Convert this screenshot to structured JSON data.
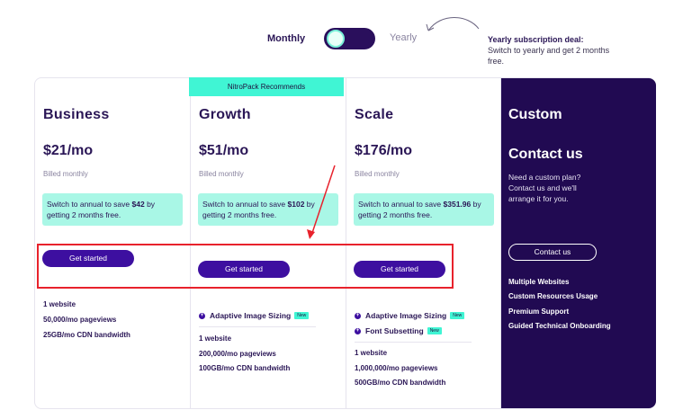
{
  "toggle": {
    "monthly_label": "Monthly",
    "yearly_label": "Yearly",
    "state": "monthly"
  },
  "deal": {
    "title": "Yearly subscription deal:",
    "text": "Switch to yearly and get 2 months free."
  },
  "recommend_label": "NitroPack Recommends",
  "plans": [
    {
      "name": "Business",
      "price": "$21/mo",
      "billed": "Billed monthly",
      "save_prefix": "Switch to annual to save ",
      "save_amount": "$42",
      "save_suffix": " by getting 2 months free.",
      "button": "Get started",
      "features": [
        "1 website",
        "50,000/mo pageviews",
        "25GB/mo CDN bandwidth"
      ]
    },
    {
      "name": "Growth",
      "price": "$51/mo",
      "billed": "Billed monthly",
      "save_prefix": "Switch to annual to save ",
      "save_amount": "$102",
      "save_suffix": " by getting 2 months free.",
      "button": "Get started",
      "extras": [
        {
          "label": "Adaptive Image Sizing",
          "badge": "New"
        }
      ],
      "features": [
        "1 website",
        "200,000/mo pageviews",
        "100GB/mo CDN bandwidth"
      ]
    },
    {
      "name": "Scale",
      "price": "$176/mo",
      "billed": "Billed monthly",
      "save_prefix": "Switch to annual to save ",
      "save_amount": "$351.96",
      "save_suffix": " by getting 2 months free.",
      "button": "Get started",
      "extras": [
        {
          "label": "Adaptive Image Sizing",
          "badge": "New"
        },
        {
          "label": "Font Subsetting",
          "badge": "New"
        }
      ],
      "features": [
        "1 website",
        "1,000,000/mo pageviews",
        "500GB/mo CDN bandwidth"
      ]
    }
  ],
  "custom": {
    "name": "Custom",
    "contact_title": "Contact us",
    "text": "Need a custom plan? Contact us and we'll arrange it for you.",
    "button": "Contact us",
    "features": [
      "Multiple Websites",
      "Custom Resources Usage",
      "Premium Support",
      "Guided Technical Onboarding"
    ]
  },
  "colors": {
    "accent": "#3d0fa0",
    "teal": "#40f5d4",
    "dark": "#210a52",
    "annotation": "#e8222c"
  }
}
